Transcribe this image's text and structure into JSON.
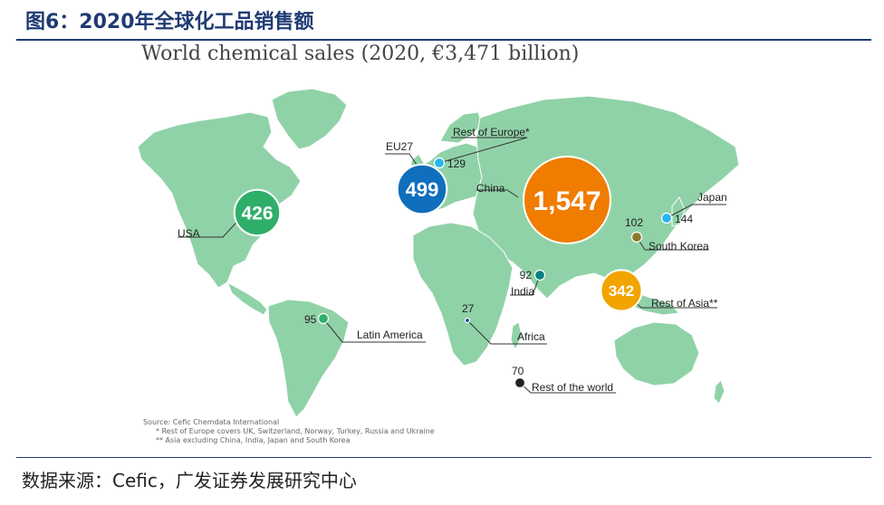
{
  "figure": {
    "title": "图6：2020年全球化工品销售额",
    "source": "数据来源：Cefic，广发证券发展研究中心"
  },
  "chart_data": {
    "type": "bubble-map",
    "title": "World chemical sales (2020, €3,471 billion)",
    "unit": "€ billion",
    "total": 3471,
    "regions": [
      {
        "name": "China",
        "value": 1547,
        "label": "1,547",
        "color": "#f07c00"
      },
      {
        "name": "EU27",
        "value": 499,
        "label": "499",
        "color": "#0f6fbd"
      },
      {
        "name": "USA",
        "value": 426,
        "label": "426",
        "color": "#2fae6a"
      },
      {
        "name": "Rest of Asia**",
        "value": 342,
        "label": "342",
        "color": "#f2a400"
      },
      {
        "name": "Japan",
        "value": 144,
        "label": "144",
        "color": "#29b6f0"
      },
      {
        "name": "Rest of Europe*",
        "value": 129,
        "label": "129",
        "color": "#29b6f0"
      },
      {
        "name": "South Korea",
        "value": 102,
        "label": "102",
        "color": "#8b7a2b"
      },
      {
        "name": "Latin America",
        "value": 95,
        "label": "95",
        "color": "#2fae6a"
      },
      {
        "name": "India",
        "value": 92,
        "label": "92",
        "color": "#0a7f80"
      },
      {
        "name": "Rest of the world",
        "value": 70,
        "label": "70",
        "color": "#222222"
      },
      {
        "name": "Africa",
        "value": 27,
        "label": "27",
        "color": "#0f4d9c"
      }
    ],
    "map_color": "#90d2a8"
  },
  "notes": {
    "source": "Source: Cefic Chemdata International",
    "note1": "*  Rest of Europe covers UK, Switzerland, Norway, Turkey, Russia and Ukraine",
    "note2": "** Asia excluding China, India, Japan and South Korea"
  }
}
